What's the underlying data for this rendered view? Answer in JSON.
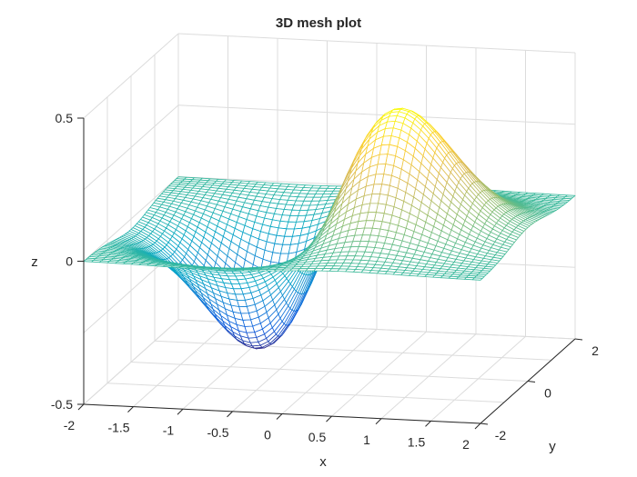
{
  "chart_data": {
    "type": "mesh",
    "title": "3D mesh plot",
    "xlabel": "x",
    "ylabel": "y",
    "zlabel": "z",
    "surface": "z = x*exp(-x^2-y^2)",
    "x_range": [
      -2,
      2
    ],
    "y_range": [
      -2,
      2
    ],
    "grid_points": 51,
    "xlim": [
      -2,
      2
    ],
    "ylim": [
      -2,
      2
    ],
    "zlim": [
      -0.5,
      0.5
    ],
    "xticks": [
      "-2",
      "-1.5",
      "-1",
      "-0.5",
      "0",
      "0.5",
      "1",
      "1.5",
      "2"
    ],
    "yticks": [
      "-2",
      "0",
      "2"
    ],
    "zticks": [
      "-0.5",
      "0",
      "0.5"
    ],
    "grid": true,
    "colormap": [
      "#352a87",
      "#0f5cdd",
      "#1481d6",
      "#06a7c6",
      "#38b99e",
      "#92bf73",
      "#d9ba56",
      "#fcce2e",
      "#f9fb0e"
    ],
    "face_color": "#ffffff",
    "view": {
      "azimuth": -37.5,
      "elevation": 30
    }
  }
}
